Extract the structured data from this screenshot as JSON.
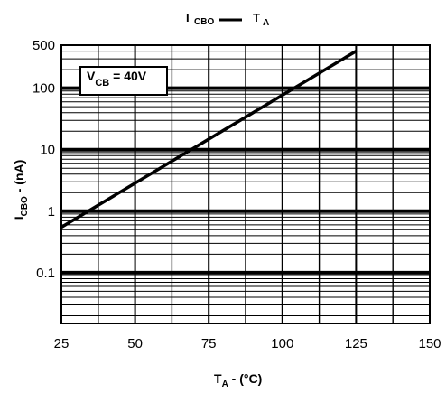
{
  "chart_data": {
    "type": "line",
    "title": {
      "y_symbol": "I",
      "y_sub": "CBO",
      "x_symbol": "T",
      "x_sub": "A"
    },
    "xlabel": "T  - (°C)",
    "xlabel_parts": {
      "symbol": "T",
      "sub": "A",
      "rest": " - (°C)"
    },
    "ylabel": "I    - (nA)",
    "ylabel_parts": {
      "symbol": "I",
      "sub": "CBO",
      "rest": " - (nA)"
    },
    "xlim": [
      25,
      150
    ],
    "ylim": [
      0.015,
      500
    ],
    "yscale": "log",
    "x_ticks": [
      25,
      50,
      75,
      100,
      125,
      150
    ],
    "y_ticks": [
      {
        "value": 0.1,
        "label": "0.1"
      },
      {
        "value": 1,
        "label": "1"
      },
      {
        "value": 10,
        "label": "10"
      },
      {
        "value": 100,
        "label": "100"
      },
      {
        "value": 500,
        "label": "500"
      }
    ],
    "grid": true,
    "annotation": {
      "symbol": "V",
      "sub": "CB",
      "rest": " = 40V"
    },
    "series": [
      {
        "x": [
          25,
          125
        ],
        "y": [
          0.55,
          400
        ]
      }
    ]
  }
}
